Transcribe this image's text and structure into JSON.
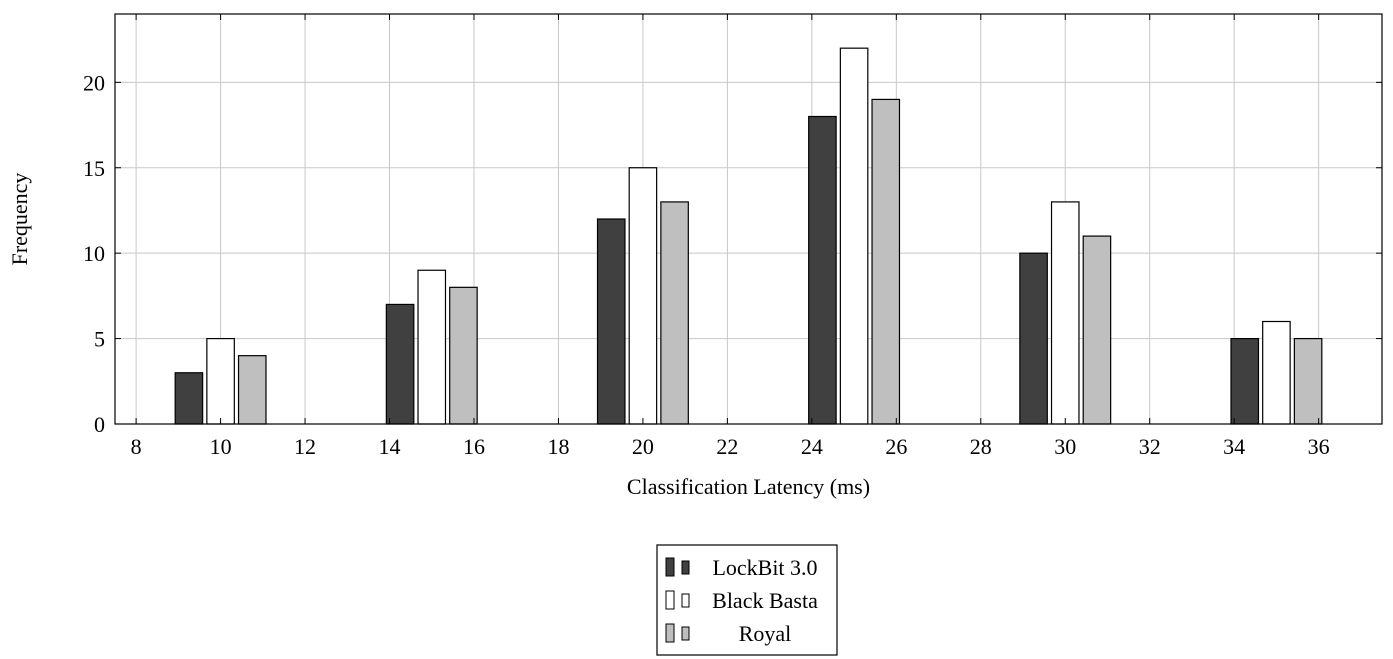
{
  "chart_data": {
    "type": "bar",
    "xlabel": "Classification Latency (ms)",
    "ylabel": "Frequency",
    "xlim": [
      7.5,
      37.5
    ],
    "ylim": [
      0,
      24
    ],
    "x_ticks": [
      8,
      10,
      12,
      14,
      16,
      18,
      20,
      22,
      24,
      26,
      28,
      30,
      32,
      34,
      36
    ],
    "y_ticks": [
      0,
      5,
      10,
      15,
      20
    ],
    "grid": true,
    "legend_position": "below",
    "x": [
      10,
      15,
      20,
      25,
      30,
      35
    ],
    "series": [
      {
        "name": "LockBit 3.0",
        "color": "#404040",
        "offset": -0.75,
        "values": [
          3,
          7,
          12,
          18,
          10,
          5
        ]
      },
      {
        "name": "Black Basta",
        "color": "#ffffff",
        "offset": 0,
        "values": [
          5,
          9,
          15,
          22,
          13,
          6
        ]
      },
      {
        "name": "Royal",
        "color": "#bfbfbf",
        "offset": 0.75,
        "values": [
          4,
          8,
          13,
          19,
          11,
          5
        ]
      }
    ]
  }
}
